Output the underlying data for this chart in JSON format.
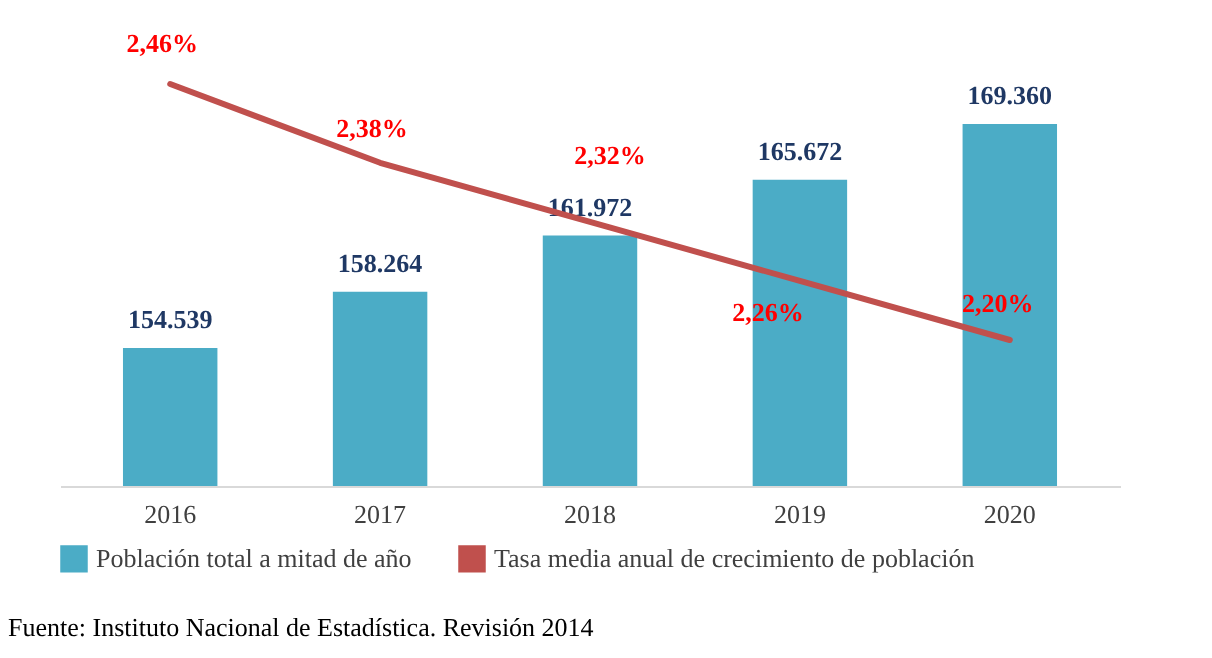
{
  "chart_data": {
    "type": "bar",
    "categories": [
      "2016",
      "2017",
      "2018",
      "2019",
      "2020"
    ],
    "series": [
      {
        "name": "Población total  a mitad de año",
        "color": "#4bacc6",
        "values": [
          154539,
          158264,
          161972,
          165672,
          169360
        ],
        "value_labels": [
          "154.539",
          "158.264",
          "161.972",
          "165.672",
          "169.360"
        ]
      },
      {
        "name": "Tasa media anual de crecimiento de población",
        "type": "line",
        "axis": "y2",
        "color": "#c0504d",
        "values": [
          2.46,
          2.38,
          2.32,
          2.26,
          2.2
        ],
        "value_labels": [
          "2,46%",
          "2,38%",
          "2,32%",
          "2,26%",
          "2,20%"
        ]
      }
    ],
    "ylim": [
      145400,
      169360
    ],
    "tick_labels": "x",
    "grid": false,
    "legend": "bottom",
    "annotations": [
      "Fuente: Instituto Nacional de Estadística. Revisión 2014"
    ]
  }
}
